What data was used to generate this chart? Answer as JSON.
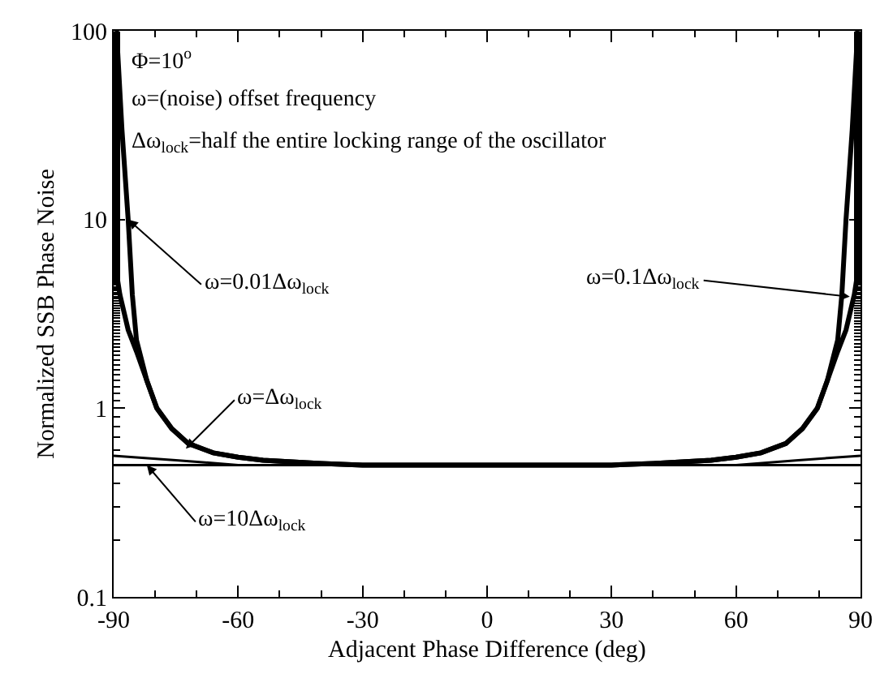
{
  "chart_data": {
    "type": "line",
    "xlabel": "Adjacent Phase Difference (deg)",
    "ylabel": "Normalized SSB Phase Noise",
    "log": "y",
    "xlim": [
      -90,
      90
    ],
    "xticks": [
      -90,
      -60,
      -30,
      0,
      30,
      60,
      90
    ],
    "ylim": [
      0.1,
      100
    ],
    "yticks": [
      0.1,
      1,
      10,
      100
    ],
    "marker": "none",
    "line_style": "solid",
    "series": [
      {
        "color": "#000000",
        "x": [
          -89.3,
          -88,
          -86.5,
          -85.5,
          -84.5,
          -82,
          -79.6,
          -76,
          -72,
          -66,
          -60,
          -54,
          -47,
          -40,
          -30,
          0,
          30,
          40,
          47,
          54,
          60,
          66,
          72,
          76,
          79.6,
          82,
          84.5,
          85.5,
          86.5,
          88,
          89.3
        ],
        "values": [
          100,
          30,
          10,
          4,
          2.3,
          1.4,
          1,
          0.78,
          0.65,
          0.58,
          0.55,
          0.53,
          0.52,
          0.51,
          0.5,
          0.5,
          0.5,
          0.51,
          0.52,
          0.53,
          0.55,
          0.58,
          0.65,
          0.78,
          1,
          1.4,
          2.3,
          4,
          10,
          30,
          100
        ]
      },
      {
        "color": "#000000",
        "x": [
          -90,
          -88.5,
          -86.5,
          -84.5,
          -82,
          -79.6,
          -76,
          -72,
          -66,
          -60,
          -54,
          -47,
          -40,
          -30,
          0,
          30,
          40,
          47,
          54,
          60,
          66,
          72,
          76,
          79.6,
          82,
          84.5,
          86.5,
          88.5,
          90
        ],
        "values": [
          6.5,
          4,
          2.6,
          2,
          1.4,
          1,
          0.78,
          0.65,
          0.58,
          0.55,
          0.53,
          0.52,
          0.51,
          0.5,
          0.5,
          0.5,
          0.51,
          0.52,
          0.53,
          0.55,
          0.58,
          0.65,
          0.78,
          1,
          1.4,
          2,
          2.6,
          4,
          6.5
        ]
      },
      {
        "color": "#000000",
        "x": [
          -90,
          -75,
          -60,
          60,
          75,
          90
        ],
        "values": [
          0.56,
          0.53,
          0.5,
          0.5,
          0.53,
          0.56
        ]
      },
      {
        "color": "#000000",
        "x": [
          -90,
          90
        ],
        "values": [
          0.5,
          0.5
        ]
      }
    ],
    "annotations": [
      "Φ=10$^{o}$",
      "ω=(noise) offset frequency",
      "Δω$_{lock}$=half the entire locking range of the oscillator",
      {
        "text": "ω=0.01Δω$_{lock}$",
        "x": -86.5,
        "y": 10
      },
      {
        "text": "ω=0.1Δω$_{lock}$",
        "x": 87.4,
        "y": 3.9
      },
      {
        "text": "ω=Δω$_{lock}$",
        "x": -72.6,
        "y": 0.61
      },
      {
        "text": "ω=10Δω$_{lock}$",
        "x": -82,
        "y": 0.5
      }
    ]
  }
}
